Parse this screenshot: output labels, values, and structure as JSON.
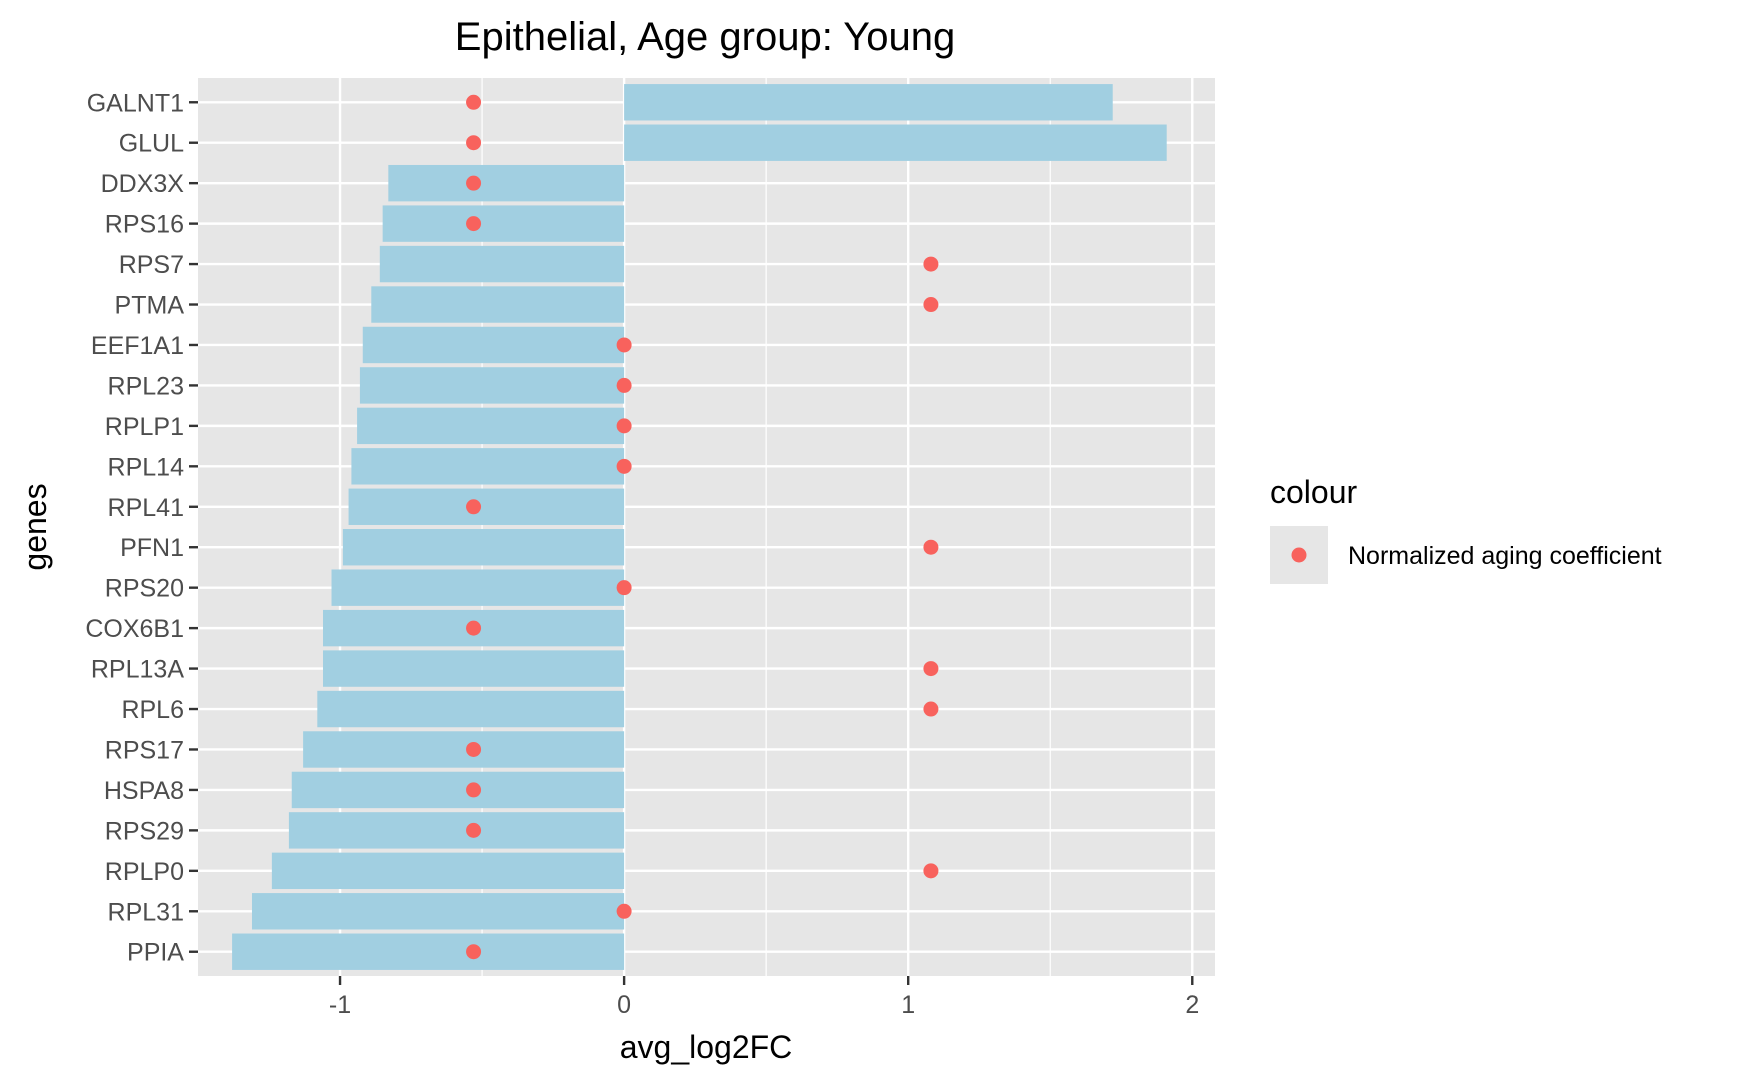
{
  "chart_data": {
    "type": "bar",
    "orientation": "horizontal",
    "title": "Epithelial, Age group: Young",
    "xlabel": "avg_log2FC",
    "ylabel": "genes",
    "xlim": [
      -1.5,
      2.08
    ],
    "x_ticks": [
      -1,
      0,
      1,
      2
    ],
    "x_tick_labels": [
      "-1",
      "0",
      "1",
      "2"
    ],
    "grid": true,
    "categories": [
      "GALNT1",
      "GLUL",
      "DDX3X",
      "RPS16",
      "RPS7",
      "PTMA",
      "EEF1A1",
      "RPL23",
      "RPLP1",
      "RPL14",
      "RPL41",
      "PFN1",
      "RPS20",
      "COX6B1",
      "RPL13A",
      "RPL6",
      "RPS17",
      "HSPA8",
      "RPS29",
      "RPLP0",
      "RPL31",
      "PPIA"
    ],
    "series": [
      {
        "type": "bar",
        "values": [
          1.72,
          1.91,
          -0.83,
          -0.85,
          -0.86,
          -0.89,
          -0.92,
          -0.93,
          -0.94,
          -0.96,
          -0.97,
          -0.99,
          -1.03,
          -1.06,
          -1.06,
          -1.08,
          -1.13,
          -1.17,
          -1.18,
          -1.24,
          -1.31,
          -1.38
        ],
        "color": "#a1cfe1"
      },
      {
        "type": "scatter",
        "name": "Normalized aging coefficient",
        "values": [
          -0.53,
          -0.53,
          -0.53,
          -0.53,
          1.08,
          1.08,
          0,
          0,
          0,
          0,
          -0.53,
          1.08,
          0,
          -0.53,
          1.08,
          1.08,
          -0.53,
          -0.53,
          -0.53,
          1.08,
          0,
          -0.53
        ],
        "color": "#f8625d"
      }
    ],
    "legend": {
      "title": "colour",
      "position": "right",
      "entries": [
        "Normalized aging coefficient"
      ]
    },
    "colors": {
      "panel_background": "#e6e6e6",
      "grid": "#ffffff",
      "bar": "#a1cfe1",
      "point": "#f8625d"
    }
  }
}
